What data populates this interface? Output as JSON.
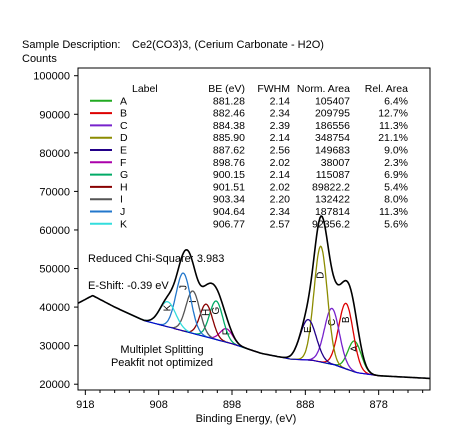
{
  "header": {
    "sample_label": "Sample Description:",
    "sample_value": "Ce2(CO3)3,  (Cerium Carbonate - H2O)",
    "counts_label": "Counts"
  },
  "chart_data": {
    "type": "line",
    "xlabel": "Binding Energy, (eV)",
    "x_reversed": true,
    "xlim": [
      919,
      871
    ],
    "ylim": [
      18500,
      102000
    ],
    "x_ticks": [
      918,
      908,
      898,
      888,
      878
    ],
    "y_ticks": [
      20000,
      30000,
      40000,
      50000,
      60000,
      70000,
      80000,
      90000,
      100000
    ],
    "grid": false,
    "table": {
      "columns": [
        "Label",
        "BE (eV)",
        "FWHM",
        "Norm. Area",
        "Rel. Area"
      ],
      "rows": [
        {
          "label": "A",
          "be": "881.28",
          "fwhm": "2.14",
          "area": "105407",
          "rel": "6.4%",
          "color": "#22aa22"
        },
        {
          "label": "B",
          "be": "882.46",
          "fwhm": "2.34",
          "area": "209795",
          "rel": "12.7%",
          "color": "#dd0000"
        },
        {
          "label": "C",
          "be": "884.38",
          "fwhm": "2.39",
          "area": "186556",
          "rel": "11.3%",
          "color": "#7722cc"
        },
        {
          "label": "D",
          "be": "885.90",
          "fwhm": "2.14",
          "area": "348754",
          "rel": "21.1%",
          "color": "#8c8c00"
        },
        {
          "label": "E",
          "be": "887.62",
          "fwhm": "2.56",
          "area": "149683",
          "rel": "9.0%",
          "color": "#220088"
        },
        {
          "label": "F",
          "be": "898.76",
          "fwhm": "2.02",
          "area": "38007",
          "rel": "2.3%",
          "color": "#aa00aa"
        },
        {
          "label": "G",
          "be": "900.15",
          "fwhm": "2.14",
          "area": "115087",
          "rel": "6.9%",
          "color": "#00aa66"
        },
        {
          "label": "H",
          "be": "901.51",
          "fwhm": "2.02",
          "area": "89822.2",
          "rel": "5.4%",
          "color": "#880000"
        },
        {
          "label": "I",
          "be": "903.34",
          "fwhm": "2.20",
          "area": "132422",
          "rel": "8.0%",
          "color": "#555555"
        },
        {
          "label": "J",
          "be": "904.64",
          "fwhm": "2.34",
          "area": "187814",
          "rel": "11.3%",
          "color": "#2277cc"
        },
        {
          "label": "K",
          "be": "906.77",
          "fwhm": "2.57",
          "area": "92356.2",
          "rel": "5.6%",
          "color": "#33dddd"
        }
      ]
    },
    "annotations": {
      "chi": "Reduced Chi-Square: 3.983",
      "shift": "E-Shift: -0.39 eV",
      "note1": "Multiplet Splitting",
      "note2": "Peakfit not optimized"
    },
    "peaks": [
      {
        "label": "A",
        "be": 881.28,
        "fwhm": 2.14,
        "height": 8000
      },
      {
        "label": "B",
        "be": 882.46,
        "fwhm": 2.34,
        "height": 17000
      },
      {
        "label": "C",
        "be": 884.38,
        "fwhm": 2.39,
        "height": 14500
      },
      {
        "label": "D",
        "be": 885.9,
        "fwhm": 2.14,
        "height": 30000
      },
      {
        "label": "E",
        "be": 887.62,
        "fwhm": 2.56,
        "height": 10500
      },
      {
        "label": "F",
        "be": 898.76,
        "fwhm": 2.02,
        "height": 3500
      },
      {
        "label": "G",
        "be": 900.15,
        "fwhm": 2.14,
        "height": 10000
      },
      {
        "label": "H",
        "be": 901.51,
        "fwhm": 2.02,
        "height": 8500
      },
      {
        "label": "I",
        "be": 903.34,
        "fwhm": 2.2,
        "height": 11000
      },
      {
        "label": "J",
        "be": 904.64,
        "fwhm": 2.34,
        "height": 15000
      },
      {
        "label": "K",
        "be": 906.77,
        "fwhm": 2.57,
        "height": 6500
      }
    ],
    "background": [
      {
        "be": 919,
        "counts": 41000
      },
      {
        "be": 917,
        "counts": 43000
      },
      {
        "be": 914,
        "counts": 40000
      },
      {
        "be": 910,
        "counts": 36500
      },
      {
        "be": 906,
        "counts": 34500
      },
      {
        "be": 902,
        "counts": 32500
      },
      {
        "be": 898,
        "counts": 30500
      },
      {
        "be": 894,
        "counts": 28000
      },
      {
        "be": 890,
        "counts": 26500
      },
      {
        "be": 887,
        "counts": 26200
      },
      {
        "be": 884,
        "counts": 25000
      },
      {
        "be": 881,
        "counts": 23000
      },
      {
        "be": 878,
        "counts": 22200
      },
      {
        "be": 874,
        "counts": 21800
      },
      {
        "be": 871,
        "counts": 21500
      }
    ],
    "colors": {
      "envelope": "#000000",
      "background": "#0000cc"
    }
  }
}
